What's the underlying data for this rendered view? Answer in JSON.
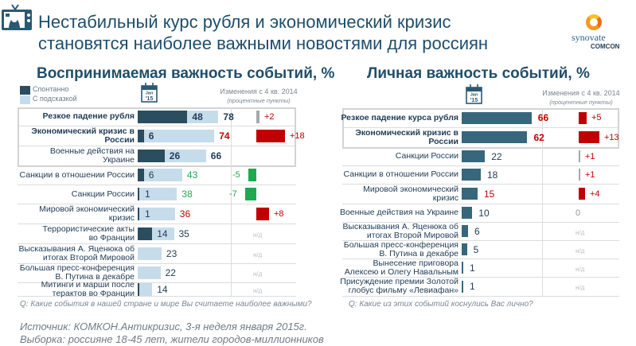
{
  "header": {
    "title_line1": "Нестабильный курс рубля и экономический кризис",
    "title_line2": "становятся наиболее важными новостями для россиян",
    "logo_text1": "synovate",
    "logo_text2": "COMCON",
    "icon": "tv-icon"
  },
  "colors": {
    "spontaneous": "#2a4d60",
    "prompted": "#c6dceb",
    "personal": "#36677d",
    "increase": "#c00000",
    "decrease": "#1ea951",
    "title": "#1f4e6b"
  },
  "calendar": {
    "month": "Jan",
    "year": "'15"
  },
  "chart_data": [
    {
      "type": "bar",
      "title": "Воспринимаемая важность событий, %",
      "legend": [
        "Спонтанно",
        "С подсказкой"
      ],
      "change_header": "Изменения с 4 кв. 2014",
      "change_subheader": "(процентные пункты)",
      "categories": [
        "Резкое падение рубля",
        "Экономический кризис в России",
        "Военные действия на Украине",
        "Санкции в отношении России",
        "Санкции России",
        "Мировой экономический кризис",
        "Террористические акты во Франции",
        "Высказывания А. Яценюка об итогах Второй Мировой",
        "Большая пресс-конференция В. Путина в декабре",
        "Митинги и марши после терактов во Франции"
      ],
      "label_lines": [
        [
          "Резкое падение рубля"
        ],
        [
          "Экономический кризис в",
          "России"
        ],
        [
          "Военные действия на",
          "Украине"
        ],
        [
          "Санкции в отношении России"
        ],
        [
          "Санкции России"
        ],
        [
          "Мировой экономический",
          "кризис"
        ],
        [
          "Террористические акты",
          "во Франции"
        ],
        [
          "Высказывания А. Яценюка об",
          "итогах Второй Мировой"
        ],
        [
          "Большая пресс-конференция",
          "В. Путина в декабре"
        ],
        [
          "Митинги и марши после",
          "терактов во Франции"
        ]
      ],
      "bold": [
        true,
        true,
        false,
        false,
        false,
        false,
        false,
        false,
        false,
        false
      ],
      "series": [
        {
          "name": "Спонтанно",
          "values": [
            48,
            6,
            26,
            6,
            1,
            1,
            14,
            null,
            null,
            1
          ],
          "labels": [
            "48",
            "6",
            "26",
            "6",
            "1",
            "1",
            "14",
            "",
            "",
            ""
          ]
        },
        {
          "name": "С подсказкой",
          "values": [
            78,
            74,
            66,
            43,
            38,
            36,
            35,
            23,
            22,
            14
          ]
        }
      ],
      "total_color": [
        "dark",
        "red",
        "dark",
        "green",
        "green",
        "red",
        "dark",
        "dark",
        "dark",
        "dark"
      ],
      "changes": [
        2,
        18,
        null,
        -5,
        -7,
        8,
        null,
        null,
        null,
        null
      ],
      "change_labels": [
        "+2",
        "+18",
        "",
        "-5",
        "-7",
        "+8",
        "н/д",
        "н/д",
        "н/д",
        "н/д"
      ],
      "highlight_rows": 3,
      "question": "Q: Какие события в нашей стране и мире Вы считаете наиболее важными?"
    },
    {
      "type": "bar",
      "title": "Личная важность событий, %",
      "change_header": "Изменения с 4 кв. 2014",
      "change_subheader": "(процентные пункты)",
      "categories": [
        "Резкое падение курса рубля",
        "Экономический кризис в России",
        "Санкции России",
        "Санкции в отношении России",
        "Мировой экономический кризис",
        "Военные действия на Украине",
        "Высказывания А. Яценюка об итогах Второй Мировой",
        "Большая пресс-конференция В. Путина в декабре",
        "Вынесение приговора Алексею и Олегу Навальным",
        "Присуждение премии Золотой глобус фильму «Левиафан»"
      ],
      "label_lines": [
        [
          "Резкое падение курса рубля"
        ],
        [
          "Экономический кризис в",
          "России"
        ],
        [
          "Санкции России"
        ],
        [
          "Санкции в отношении России"
        ],
        [
          "Мировой экономический",
          "кризис"
        ],
        [
          "Военные действия на Украине"
        ],
        [
          "Высказывания А. Яценюка об",
          "итогах Второй Мировой"
        ],
        [
          "Большая пресс-конференция",
          "В. Путина в декабре"
        ],
        [
          "Вынесение приговора",
          "Алексею и Олегу Навальным"
        ],
        [
          "Присуждение премии Золотой",
          "глобус фильму «Левиафан»"
        ]
      ],
      "bold": [
        true,
        true,
        false,
        false,
        false,
        false,
        false,
        false,
        false,
        false
      ],
      "values": [
        66,
        62,
        22,
        18,
        15,
        10,
        6,
        5,
        1,
        1
      ],
      "value_color": [
        "red",
        "red",
        "dark",
        "dark",
        "red",
        "dark",
        "dark",
        "dark",
        "dark",
        "dark"
      ],
      "changes": [
        5,
        13,
        1,
        1,
        4,
        0,
        null,
        null,
        null,
        null
      ],
      "change_labels": [
        "+5",
        "+13",
        "+1",
        "+1",
        "+4",
        "0",
        "н/д",
        "н/д",
        "н/д",
        "н/д"
      ],
      "highlight_rows": 2,
      "question": "Q: Какие из этих событий коснулись Вас лично?"
    }
  ],
  "footer": {
    "source": "Источник: КОМКОН.Антикризис, 3-я неделя  января 2015г.",
    "sample": "Выборка: россияне 18-45 лет, жители городов-миллионников"
  }
}
